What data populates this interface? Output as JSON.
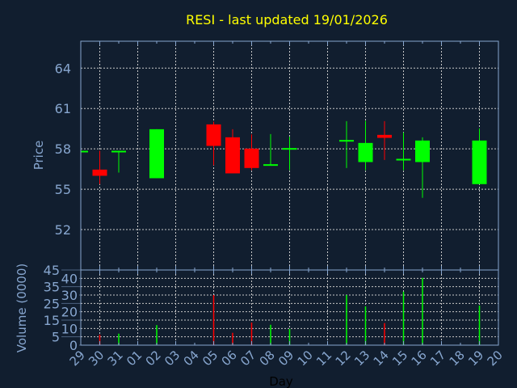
{
  "colors": {
    "background": "#111e2f",
    "title": "#ffff00",
    "axis": "#87a6cf",
    "grid": "#c8c8c8",
    "up": "#00ff00",
    "down": "#ff0000"
  },
  "chart_data": [
    {
      "type": "candlestick",
      "title": "RESI - last updated 19/01/2026",
      "xlabel": "",
      "ylabel": "Price",
      "ylim": [
        49,
        66
      ],
      "yticks": [
        "52",
        "55",
        "58",
        "61",
        "64"
      ],
      "grid": true,
      "x_tick_labels": [
        "29",
        "30",
        "31",
        "01",
        "02",
        "03",
        "04",
        "05",
        "06",
        "07",
        "08",
        "09",
        "10",
        "11",
        "12",
        "13",
        "14",
        "15",
        "16",
        "17",
        "18",
        "19",
        "20"
      ],
      "candles": [
        {
          "day": "29",
          "open": 57.8,
          "high": 57.8,
          "low": 57.8,
          "close": 57.8
        },
        {
          "day": "30",
          "open": 56.46,
          "high": 57.86,
          "low": 55.38,
          "close": 56.0
        },
        {
          "day": "31",
          "open": 57.78,
          "high": 57.8,
          "low": 56.24,
          "close": 57.8
        },
        {
          "day": "02",
          "open": 55.82,
          "high": 59.46,
          "low": 55.82,
          "close": 59.46
        },
        {
          "day": "05",
          "open": 59.82,
          "high": 60.02,
          "low": 56.78,
          "close": 58.22
        },
        {
          "day": "06",
          "open": 58.86,
          "high": 59.46,
          "low": 56.18,
          "close": 56.18
        },
        {
          "day": "07",
          "open": 58.02,
          "high": 59.08,
          "low": 56.42,
          "close": 56.58
        },
        {
          "day": "08",
          "open": 56.76,
          "high": 59.1,
          "low": 56.76,
          "close": 56.8
        },
        {
          "day": "09",
          "open": 57.96,
          "high": 58.9,
          "low": 56.42,
          "close": 58.0
        },
        {
          "day": "12",
          "open": 58.56,
          "high": 60.06,
          "low": 56.58,
          "close": 58.6
        },
        {
          "day": "13",
          "open": 57.02,
          "high": 60.08,
          "low": 56.42,
          "close": 58.44
        },
        {
          "day": "14",
          "open": 59.04,
          "high": 60.06,
          "low": 57.18,
          "close": 58.82
        },
        {
          "day": "15",
          "open": 57.18,
          "high": 59.22,
          "low": 56.42,
          "close": 57.2
        },
        {
          "day": "16",
          "open": 57.02,
          "high": 58.86,
          "low": 54.36,
          "close": 58.62
        },
        {
          "day": "19",
          "open": 55.38,
          "high": 59.52,
          "low": 55.38,
          "close": 58.62
        }
      ]
    },
    {
      "type": "bar",
      "xlabel": "Day",
      "ylabel": "Volume (0000)",
      "ylim": [
        0,
        45
      ],
      "yticks": [
        "0",
        "5",
        "10",
        "15",
        "20",
        "25",
        "30",
        "35",
        "40",
        "45"
      ],
      "grid": true,
      "bars": [
        {
          "day": "30",
          "value": 6.3,
          "direction": "down"
        },
        {
          "day": "31",
          "value": 6.9,
          "direction": "up"
        },
        {
          "day": "02",
          "value": 12,
          "direction": "up"
        },
        {
          "day": "05",
          "value": 30,
          "direction": "down"
        },
        {
          "day": "06",
          "value": 7.4,
          "direction": "down"
        },
        {
          "day": "07",
          "value": 13.5,
          "direction": "down"
        },
        {
          "day": "08",
          "value": 12.2,
          "direction": "up"
        },
        {
          "day": "09",
          "value": 9.7,
          "direction": "up"
        },
        {
          "day": "12",
          "value": 30,
          "direction": "up"
        },
        {
          "day": "13",
          "value": 23.2,
          "direction": "up"
        },
        {
          "day": "14",
          "value": 13.2,
          "direction": "down"
        },
        {
          "day": "15",
          "value": 32,
          "direction": "up"
        },
        {
          "day": "16",
          "value": 40.3,
          "direction": "up"
        },
        {
          "day": "19",
          "value": 23.7,
          "direction": "up"
        }
      ]
    }
  ]
}
